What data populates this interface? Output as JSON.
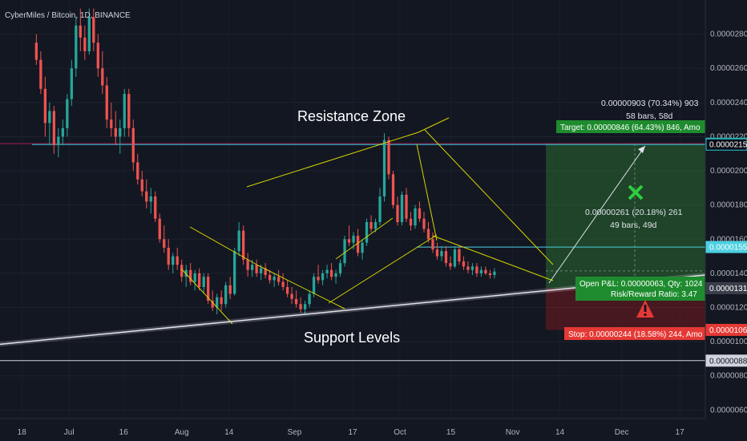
{
  "header": {
    "title": "CyberMiles / Bitcoin, 1D, BINANCE"
  },
  "annotations": {
    "resistance": "Resistance Zone",
    "support": "Support Levels"
  },
  "position": {
    "target_label": "Target: 0.00000846 (64.43%) 846, Amo",
    "stop_label": "Stop: 0.00000244 (18.58%) 244, Amo",
    "pnl_label": "Open P&L: 0.00000063, Qty: 1024",
    "rr_label": "Risk/Reward Ratio: 3.47",
    "measure_total_line1": "0.00000903 (70.34%) 903",
    "measure_total_line2": "58 bars, 58d",
    "measure_mid_line1": "0.00000261 (20.18%) 261",
    "measure_mid_line2": "49 bars, 49d",
    "entry": 1.313e-05,
    "target": 2.159e-05,
    "stop": 1.069e-05
  },
  "price_tags": [
    {
      "label": "0.00002159",
      "value": 2.159e-05,
      "color": "#26a69a"
    },
    {
      "label": "0.00002154",
      "value": 2.154e-05,
      "color": "#0b0e16"
    },
    {
      "label": "0.00001554",
      "value": 1.554e-05,
      "color": "#4dd0e1"
    },
    {
      "label": "0.00001313",
      "value": 1.313e-05,
      "color": "#3a3e4a"
    },
    {
      "label": "0.00001069",
      "value": 1.069e-05,
      "color": "#e53935"
    },
    {
      "label": "0.00000889",
      "value": 8.89e-06,
      "color": "#d1d4dc"
    }
  ],
  "colors": {
    "up": "#26a69a",
    "down": "#ef5350",
    "background": "#131722",
    "pattern": "#d4d400",
    "profit": "#1b5e20",
    "loss": "#5d1a1a"
  },
  "icons": {
    "target": "crossed-swords-icon",
    "stop": "warning-triangle-icon"
  },
  "chart_data": {
    "type": "candlestick",
    "title": "CyberMiles / Bitcoin, 1D, BINANCE",
    "y_ticks": [
      "0.00002800",
      "0.00002600",
      "0.00002400",
      "0.00002200",
      "0.00002000",
      "0.00001800",
      "0.00001600",
      "0.00001400",
      "0.00001200",
      "0.00001000",
      "0.00000800",
      "0.00000600"
    ],
    "ylim": [
      5.5e-06,
      3e-05
    ],
    "x_ticks": [
      {
        "label": "18",
        "day": 0
      },
      {
        "label": "Jul",
        "day": 13
      },
      {
        "label": "16",
        "day": 28
      },
      {
        "label": "Aug",
        "day": 44
      },
      {
        "label": "14",
        "day": 57
      },
      {
        "label": "Sep",
        "day": 75
      },
      {
        "label": "17",
        "day": 91
      },
      {
        "label": "Oct",
        "day": 104
      },
      {
        "label": "15",
        "day": 118
      },
      {
        "label": "Nov",
        "day": 135
      },
      {
        "label": "14",
        "day": 148
      },
      {
        "label": "Dec",
        "day": 165
      },
      {
        "label": "17",
        "day": 181
      }
    ],
    "xlim": [
      -6,
      188
    ],
    "horizontal_levels": [
      2.159e-05,
      2.154e-05,
      1.554e-05,
      8.89e-06
    ],
    "trend_lines": [
      {
        "name": "long-support",
        "p1": {
          "day": -6,
          "price": 9.85e-06
        },
        "p2": {
          "day": 188,
          "price": 1.39e-05
        }
      },
      {
        "name": "resistance-upper",
        "p1": {
          "day": 64,
          "price": 1.88e-05
        },
        "p2": {
          "day": 118,
          "price": 2.28e-05
        }
      },
      {
        "name": "resistance-lower",
        "p1": {
          "day": 105,
          "price": 2.15e-05
        },
        "p2": {
          "day": 122,
          "price": 2.18e-05
        }
      }
    ],
    "series": [
      {
        "name": "price",
        "values_note": "daily candles",
        "ohlc": [
          [
            2.75e-05,
            2.8e-05,
            2.62e-05,
            2.65e-05
          ],
          [
            2.65e-05,
            2.7e-05,
            2.45e-05,
            2.48e-05
          ],
          [
            2.48e-05,
            2.55e-05,
            2.2e-05,
            2.28e-05
          ],
          [
            2.28e-05,
            2.4e-05,
            2.15e-05,
            2.35e-05
          ],
          [
            2.35e-05,
            2.38e-05,
            2.1e-05,
            2.15e-05
          ],
          [
            2.15e-05,
            2.25e-05,
            2.08e-05,
            2.2e-05
          ],
          [
            2.2e-05,
            2.3e-05,
            2.15e-05,
            2.25e-05
          ],
          [
            2.25e-05,
            2.45e-05,
            2.2e-05,
            2.42e-05
          ],
          [
            2.42e-05,
            2.65e-05,
            2.38e-05,
            2.6e-05
          ],
          [
            2.6e-05,
            2.9e-05,
            2.55e-05,
            2.85e-05
          ],
          [
            2.85e-05,
            2.95e-05,
            2.7e-05,
            2.78e-05
          ],
          [
            2.78e-05,
            2.85e-05,
            2.65e-05,
            2.7e-05
          ],
          [
            2.7e-05,
            2.95e-05,
            2.68e-05,
            2.9e-05
          ],
          [
            2.9e-05,
            2.95e-05,
            2.7e-05,
            2.75e-05
          ],
          [
            2.75e-05,
            2.8e-05,
            2.55e-05,
            2.6e-05
          ],
          [
            2.6e-05,
            2.7e-05,
            2.45e-05,
            2.5e-05
          ],
          [
            2.5e-05,
            2.55e-05,
            2.25e-05,
            2.3e-05
          ],
          [
            2.3e-05,
            2.4e-05,
            2.2e-05,
            2.25e-05
          ],
          [
            2.25e-05,
            2.35e-05,
            2.15e-05,
            2.2e-05
          ],
          [
            2.2e-05,
            2.3e-05,
            2.1e-05,
            2.25e-05
          ],
          [
            2.25e-05,
            2.48e-05,
            2.2e-05,
            2.45e-05
          ],
          [
            2.45e-05,
            2.48e-05,
            2.2e-05,
            2.25e-05
          ],
          [
            2.25e-05,
            2.3e-05,
            2e-05,
            2.05e-05
          ],
          [
            2.05e-05,
            2.1e-05,
            1.92e-05,
            1.95e-05
          ],
          [
            1.95e-05,
            2e-05,
            1.85e-05,
            1.88e-05
          ],
          [
            1.88e-05,
            1.95e-05,
            1.78e-05,
            1.82e-05
          ],
          [
            1.82e-05,
            1.9e-05,
            1.75e-05,
            1.85e-05
          ],
          [
            1.85e-05,
            1.88e-05,
            1.7e-05,
            1.72e-05
          ],
          [
            1.72e-05,
            1.75e-05,
            1.58e-05,
            1.6e-05
          ],
          [
            1.6e-05,
            1.68e-05,
            1.52e-05,
            1.55e-05
          ],
          [
            1.55e-05,
            1.6e-05,
            1.42e-05,
            1.45e-05
          ],
          [
            1.45e-05,
            1.52e-05,
            1.4e-05,
            1.5e-05
          ],
          [
            1.5e-05,
            1.55e-05,
            1.42e-05,
            1.45e-05
          ],
          [
            1.45e-05,
            1.48e-05,
            1.35e-05,
            1.38e-05
          ],
          [
            1.38e-05,
            1.45e-05,
            1.32e-05,
            1.42e-05
          ],
          [
            1.42e-05,
            1.46e-05,
            1.33e-05,
            1.35e-05
          ],
          [
            1.35e-05,
            1.42e-05,
            1.3e-05,
            1.4e-05
          ],
          [
            1.4e-05,
            1.43e-05,
            1.3e-05,
            1.32e-05
          ],
          [
            1.32e-05,
            1.4e-05,
            1.28e-05,
            1.38e-05
          ],
          [
            1.38e-05,
            1.4e-05,
            1.22e-05,
            1.24e-05
          ],
          [
            1.24e-05,
            1.3e-05,
            1.18e-05,
            1.2e-05
          ],
          [
            1.2e-05,
            1.28e-05,
            1.16e-05,
            1.26e-05
          ],
          [
            1.26e-05,
            1.3e-05,
            1.18e-05,
            1.22e-05
          ],
          [
            1.22e-05,
            1.35e-05,
            1.2e-05,
            1.33e-05
          ],
          [
            1.33e-05,
            1.38e-05,
            1.25e-05,
            1.28e-05
          ],
          [
            1.28e-05,
            1.55e-05,
            1.27e-05,
            1.53e-05
          ],
          [
            1.53e-05,
            1.7e-05,
            1.5e-05,
            1.65e-05
          ],
          [
            1.65e-05,
            1.68e-05,
            1.45e-05,
            1.48e-05
          ],
          [
            1.48e-05,
            1.52e-05,
            1.38e-05,
            1.42e-05
          ],
          [
            1.42e-05,
            1.48e-05,
            1.38e-05,
            1.45e-05
          ],
          [
            1.45e-05,
            1.48e-05,
            1.38e-05,
            1.4e-05
          ],
          [
            1.4e-05,
            1.45e-05,
            1.36e-05,
            1.43e-05
          ],
          [
            1.43e-05,
            1.46e-05,
            1.37e-05,
            1.39e-05
          ],
          [
            1.39e-05,
            1.42e-05,
            1.34e-05,
            1.36e-05
          ],
          [
            1.36e-05,
            1.4e-05,
            1.32e-05,
            1.38e-05
          ],
          [
            1.38e-05,
            1.42e-05,
            1.33e-05,
            1.35e-05
          ],
          [
            1.35e-05,
            1.4e-05,
            1.3e-05,
            1.32e-05
          ],
          [
            1.32e-05,
            1.36e-05,
            1.26e-05,
            1.28e-05
          ],
          [
            1.28e-05,
            1.32e-05,
            1.22e-05,
            1.25e-05
          ],
          [
            1.25e-05,
            1.3e-05,
            1.2e-05,
            1.22e-05
          ],
          [
            1.22e-05,
            1.26e-05,
            1.17e-05,
            1.19e-05
          ],
          [
            1.19e-05,
            1.24e-05,
            1.16e-05,
            1.22e-05
          ],
          [
            1.22e-05,
            1.3e-05,
            1.2e-05,
            1.28e-05
          ],
          [
            1.28e-05,
            1.4e-05,
            1.26e-05,
            1.38e-05
          ],
          [
            1.38e-05,
            1.45e-05,
            1.34e-05,
            1.36e-05
          ],
          [
            1.36e-05,
            1.42e-05,
            1.33e-05,
            1.4e-05
          ],
          [
            1.4e-05,
            1.45e-05,
            1.37e-05,
            1.42e-05
          ],
          [
            1.42e-05,
            1.46e-05,
            1.36e-05,
            1.38e-05
          ],
          [
            1.38e-05,
            1.42e-05,
            1.34e-05,
            1.4e-05
          ],
          [
            1.4e-05,
            1.48e-05,
            1.38e-05,
            1.46e-05
          ],
          [
            1.46e-05,
            1.62e-05,
            1.44e-05,
            1.6e-05
          ],
          [
            1.6e-05,
            1.68e-05,
            1.56e-05,
            1.58e-05
          ],
          [
            1.58e-05,
            1.64e-05,
            1.54e-05,
            1.62e-05
          ],
          [
            1.62e-05,
            1.66e-05,
            1.5e-05,
            1.52e-05
          ],
          [
            1.52e-05,
            1.6e-05,
            1.48e-05,
            1.58e-05
          ],
          [
            1.58e-05,
            1.72e-05,
            1.56e-05,
            1.7e-05
          ],
          [
            1.7e-05,
            1.74e-05,
            1.64e-05,
            1.66e-05
          ],
          [
            1.66e-05,
            1.72e-05,
            1.64e-05,
            1.7e-05
          ],
          [
            1.7e-05,
            1.9e-05,
            1.68e-05,
            1.85e-05
          ],
          [
            1.85e-05,
            2.22e-05,
            1.82e-05,
            2.18e-05
          ],
          [
            2.18e-05,
            2.2e-05,
            1.95e-05,
            1.98e-05
          ],
          [
            1.98e-05,
            2e-05,
            1.78e-05,
            1.8e-05
          ],
          [
            1.8e-05,
            1.85e-05,
            1.68e-05,
            1.7e-05
          ],
          [
            1.7e-05,
            1.88e-05,
            1.68e-05,
            1.86e-05
          ],
          [
            1.86e-05,
            1.9e-05,
            1.7e-05,
            1.72e-05
          ],
          [
            1.72e-05,
            1.76e-05,
            1.65e-05,
            1.68e-05
          ],
          [
            1.68e-05,
            1.8e-05,
            1.66e-05,
            1.78e-05
          ],
          [
            1.78e-05,
            1.82e-05,
            1.7e-05,
            1.72e-05
          ],
          [
            1.72e-05,
            1.76e-05,
            1.64e-05,
            1.66e-05
          ],
          [
            1.66e-05,
            1.7e-05,
            1.58e-05,
            1.6e-05
          ],
          [
            1.6e-05,
            1.64e-05,
            1.52e-05,
            1.54e-05
          ],
          [
            1.54e-05,
            1.58e-05,
            1.48e-05,
            1.5e-05
          ],
          [
            1.5e-05,
            1.56e-05,
            1.47e-05,
            1.53e-05
          ],
          [
            1.53e-05,
            1.56e-05,
            1.44e-05,
            1.46e-05
          ],
          [
            1.46e-05,
            1.5e-05,
            1.42e-05,
            1.44e-05
          ],
          [
            1.44e-05,
            1.56e-05,
            1.43e-05,
            1.54e-05
          ],
          [
            1.54e-05,
            1.56e-05,
            1.45e-05,
            1.47e-05
          ],
          [
            1.47e-05,
            1.5e-05,
            1.42e-05,
            1.44e-05
          ],
          [
            1.44e-05,
            1.47e-05,
            1.4e-05,
            1.42e-05
          ],
          [
            1.42e-05,
            1.46e-05,
            1.39e-05,
            1.44e-05
          ],
          [
            1.44e-05,
            1.46e-05,
            1.38e-05,
            1.4e-05
          ],
          [
            1.4e-05,
            1.44e-05,
            1.38e-05,
            1.42e-05
          ],
          [
            1.42e-05,
            1.44e-05,
            1.39e-05,
            1.4e-05
          ],
          [
            1.4e-05,
            1.42e-05,
            1.37e-05,
            1.39e-05
          ],
          [
            1.39e-05,
            1.43e-05,
            1.37e-05,
            1.41e-05
          ]
        ]
      }
    ]
  }
}
